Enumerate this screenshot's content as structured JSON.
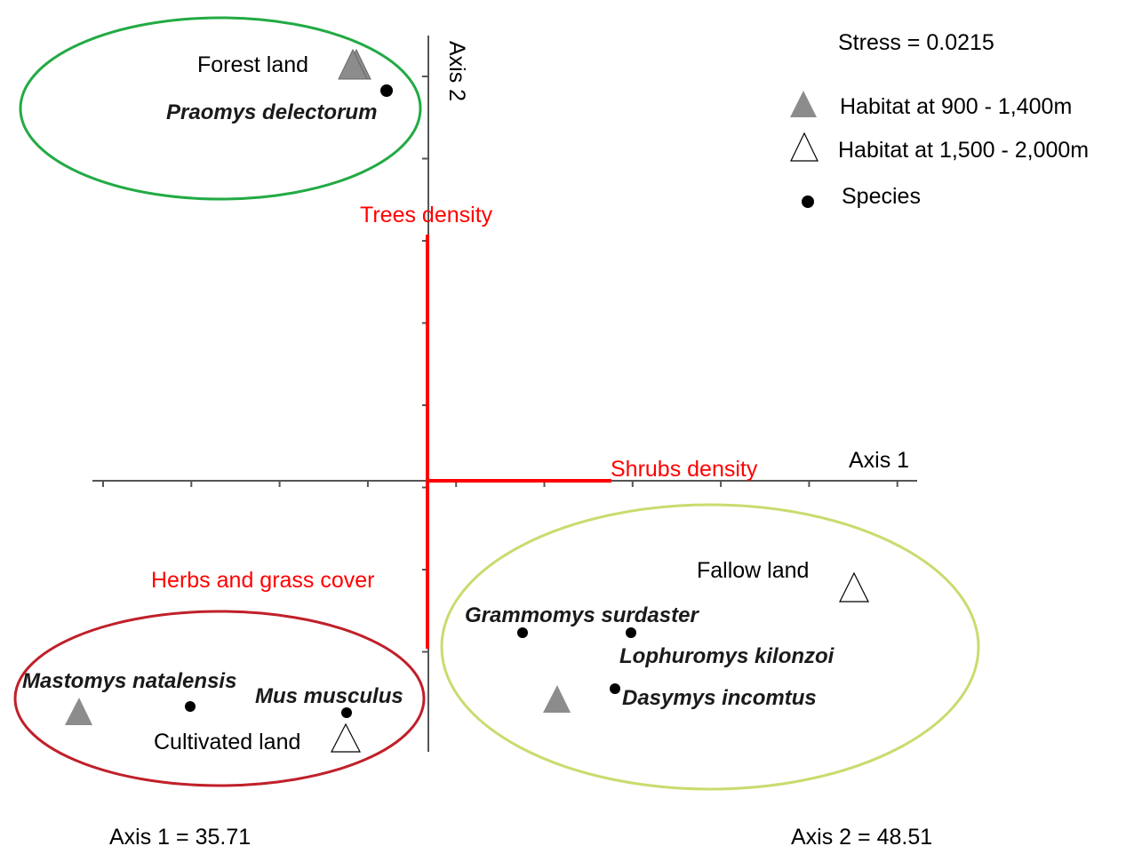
{
  "chart_data": {
    "type": "scatter",
    "title": "",
    "stress_label": "Stress = 0.0215",
    "axes": {
      "x_name": "Axis 1",
      "y_name": "Axis 2",
      "x_variance_label": "Axis 1 = 35.71",
      "y_variance_label": "Axis 2 = 48.51",
      "x_tick_count": 10,
      "y_tick_count": 8
    },
    "vectors": [
      {
        "name": "Trees density",
        "direction": "up",
        "color": "#ff0000"
      },
      {
        "name": "Shrubs density",
        "direction": "right",
        "color": "#ff0000"
      },
      {
        "name": "Herbs and grass cover",
        "direction": "down",
        "color": "#ff0000"
      }
    ],
    "groups": [
      {
        "habitat": "Forest land",
        "color": "#22aa44",
        "habitat_markers": [
          "Habitat at 900 - 1,400m",
          "Habitat at 900 - 1,400m"
        ],
        "species": [
          "Praomys delectorum"
        ]
      },
      {
        "habitat": "Cultivated land",
        "color": "#c0202a",
        "habitat_markers": [
          "Habitat at 900 - 1,400m",
          "Habitat at 1,500 - 2,000m"
        ],
        "species": [
          "Mastomys natalensis",
          "Mus musculus"
        ]
      },
      {
        "habitat": "Fallow land",
        "color": "#c8dc6e",
        "habitat_markers": [
          "Habitat at 1,500 - 2,000m",
          "Habitat at 900 - 1,400m"
        ],
        "species": [
          "Grammomys surdaster",
          "Lophuromys kilonzoi",
          "Dasymys incomtus"
        ]
      }
    ],
    "legend": {
      "placement": "top-right",
      "entries": [
        {
          "label": "Habitat at 900 - 1,400m",
          "marker": "filled-triangle",
          "color": "#8c8c8c"
        },
        {
          "label": "Habitat at 1,500 - 2,000m",
          "marker": "open-triangle",
          "color": "#ffffff"
        },
        {
          "label": "Species",
          "marker": "dot",
          "color": "#000000"
        }
      ]
    }
  }
}
